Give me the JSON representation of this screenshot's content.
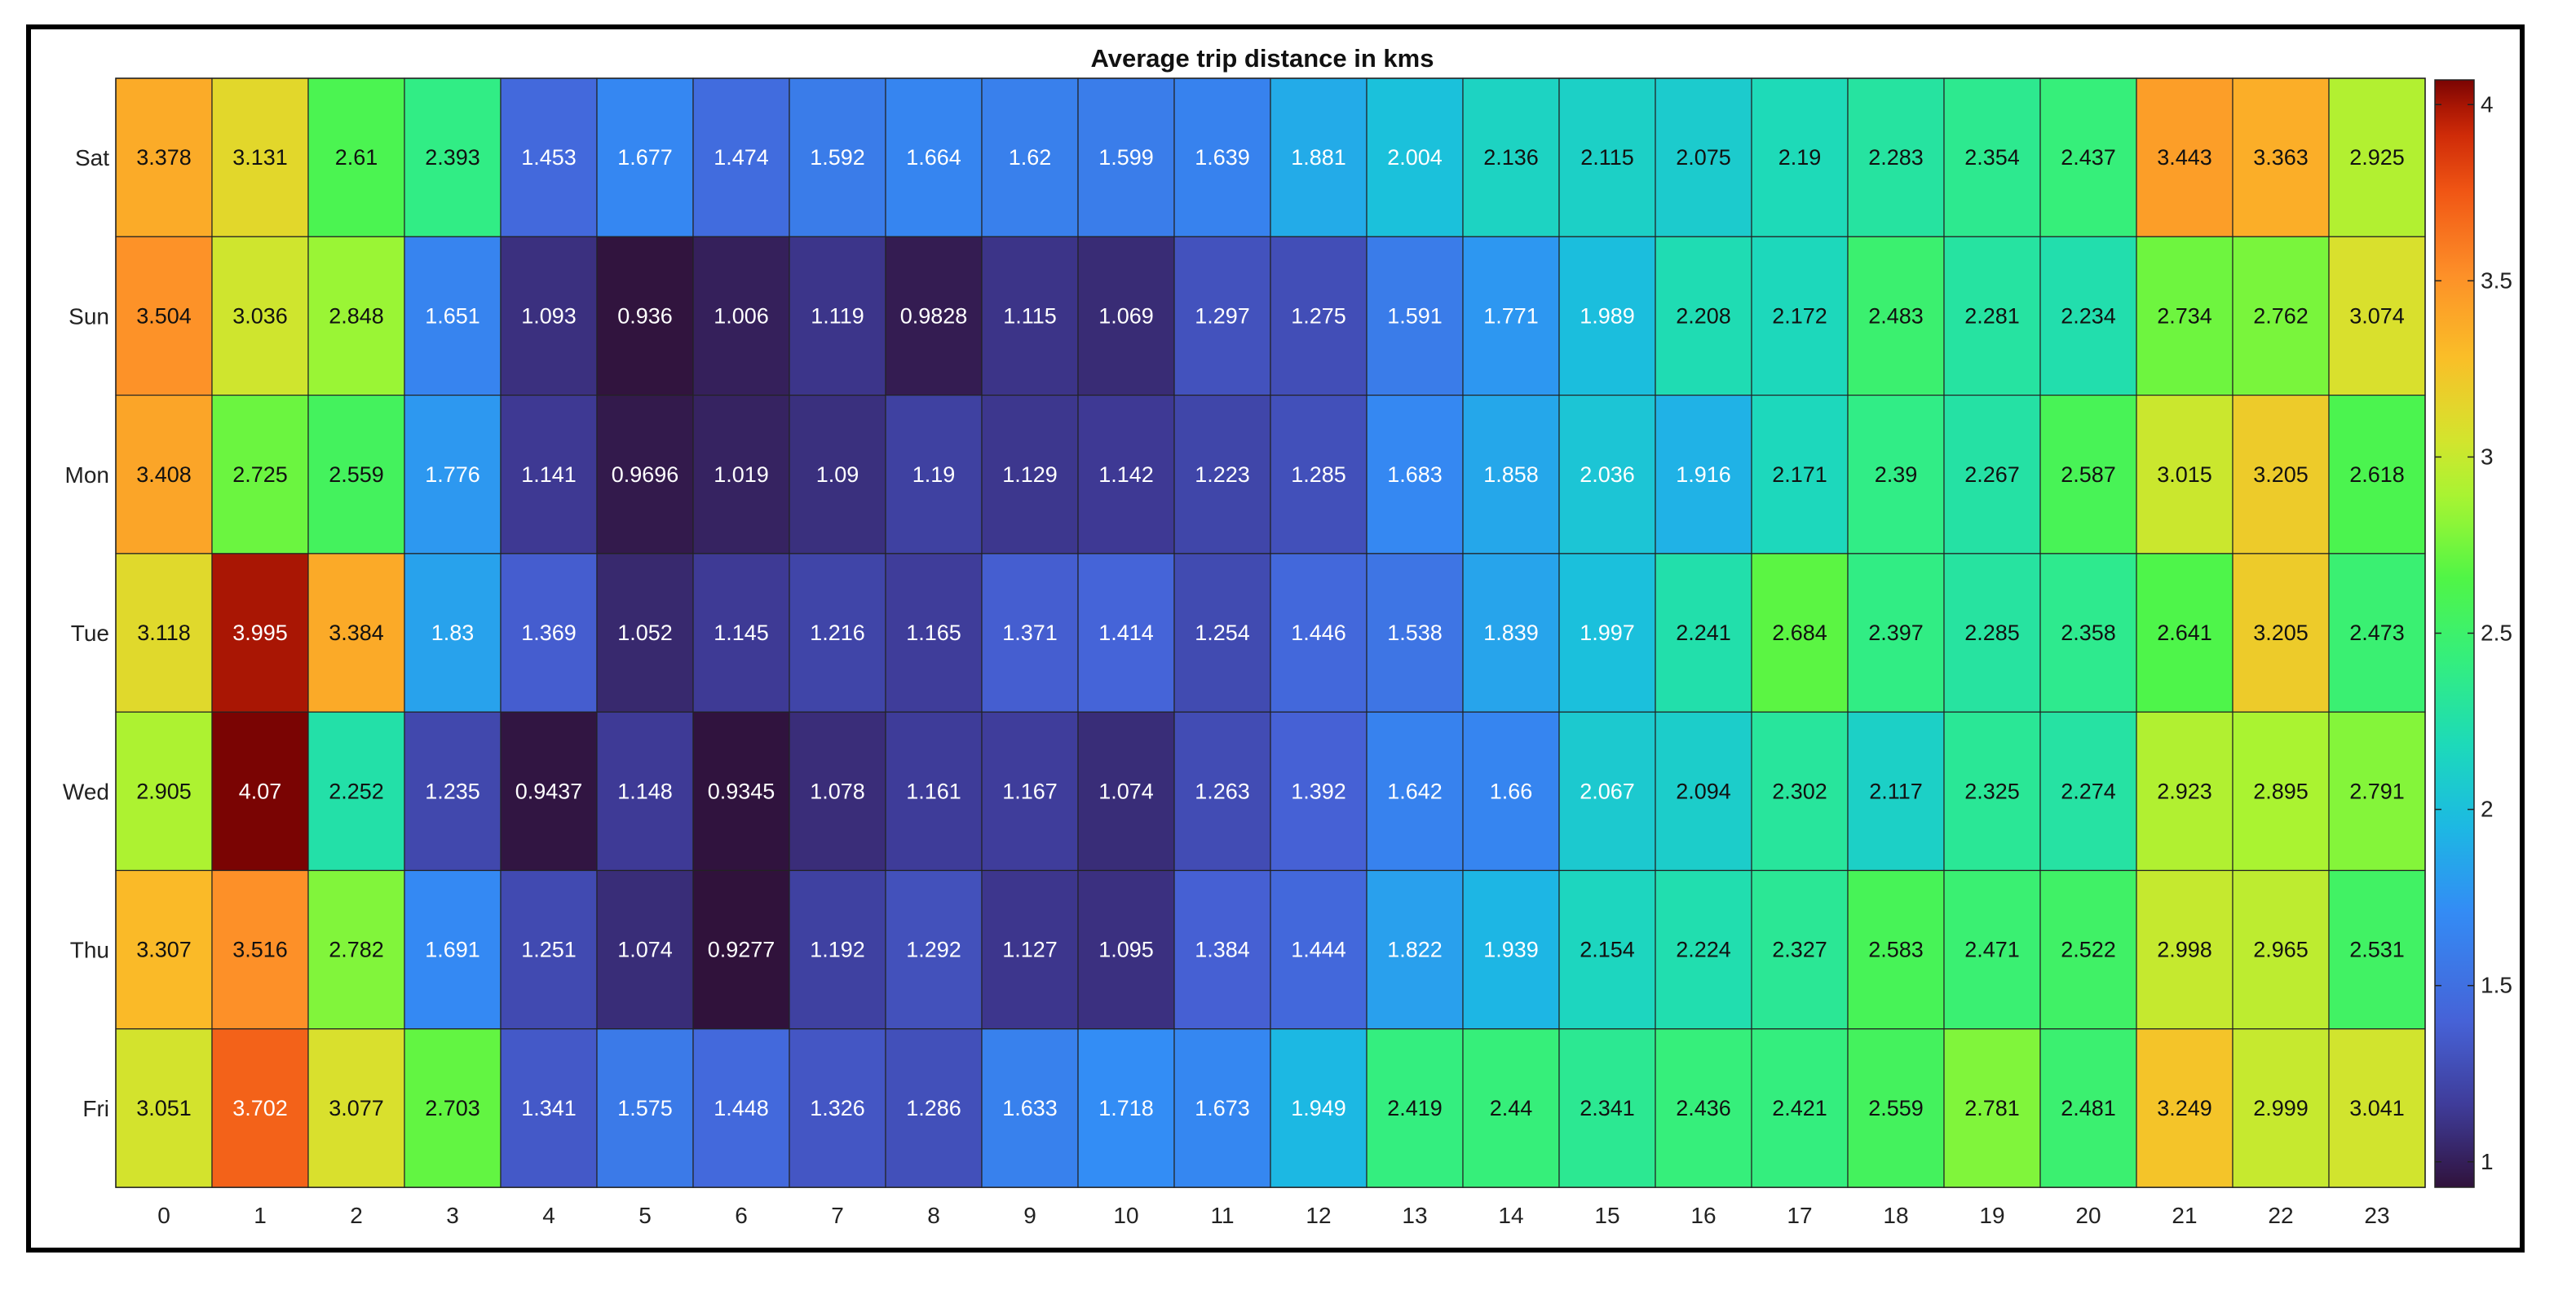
{
  "chart_data": {
    "type": "heatmap",
    "title": "Average trip distance in kms",
    "xlabel": "",
    "ylabel": "",
    "x_categories": [
      "0",
      "1",
      "2",
      "3",
      "4",
      "5",
      "6",
      "7",
      "8",
      "9",
      "10",
      "11",
      "12",
      "13",
      "14",
      "15",
      "16",
      "17",
      "18",
      "19",
      "20",
      "21",
      "22",
      "23"
    ],
    "y_categories": [
      "Sat",
      "Sun",
      "Mon",
      "Tue",
      "Wed",
      "Thu",
      "Fri"
    ],
    "values": [
      [
        "3.378",
        "3.131",
        "2.61",
        "2.393",
        "1.453",
        "1.677",
        "1.474",
        "1.592",
        "1.664",
        "1.62",
        "1.599",
        "1.639",
        "1.881",
        "2.004",
        "2.136",
        "2.115",
        "2.075",
        "2.19",
        "2.283",
        "2.354",
        "2.437",
        "3.443",
        "3.363",
        "2.925"
      ],
      [
        "3.504",
        "3.036",
        "2.848",
        "1.651",
        "1.093",
        "0.936",
        "1.006",
        "1.119",
        "0.9828",
        "1.115",
        "1.069",
        "1.297",
        "1.275",
        "1.591",
        "1.771",
        "1.989",
        "2.208",
        "2.172",
        "2.483",
        "2.281",
        "2.234",
        "2.734",
        "2.762",
        "3.074"
      ],
      [
        "3.408",
        "2.725",
        "2.559",
        "1.776",
        "1.141",
        "0.9696",
        "1.019",
        "1.09",
        "1.19",
        "1.129",
        "1.142",
        "1.223",
        "1.285",
        "1.683",
        "1.858",
        "2.036",
        "1.916",
        "2.171",
        "2.39",
        "2.267",
        "2.587",
        "3.015",
        "3.205",
        "2.618"
      ],
      [
        "3.118",
        "3.995",
        "3.384",
        "1.83",
        "1.369",
        "1.052",
        "1.145",
        "1.216",
        "1.165",
        "1.371",
        "1.414",
        "1.254",
        "1.446",
        "1.538",
        "1.839",
        "1.997",
        "2.241",
        "2.684",
        "2.397",
        "2.285",
        "2.358",
        "2.641",
        "3.205",
        "2.473"
      ],
      [
        "2.905",
        "4.07",
        "2.252",
        "1.235",
        "0.9437",
        "1.148",
        "0.9345",
        "1.078",
        "1.161",
        "1.167",
        "1.074",
        "1.263",
        "1.392",
        "1.642",
        "1.66",
        "2.067",
        "2.094",
        "2.302",
        "2.117",
        "2.325",
        "2.274",
        "2.923",
        "2.895",
        "2.791"
      ],
      [
        "3.307",
        "3.516",
        "2.782",
        "1.691",
        "1.251",
        "1.074",
        "0.9277",
        "1.192",
        "1.292",
        "1.127",
        "1.095",
        "1.384",
        "1.444",
        "1.822",
        "1.939",
        "2.154",
        "2.224",
        "2.327",
        "2.583",
        "2.471",
        "2.522",
        "2.998",
        "2.965",
        "2.531"
      ],
      [
        "3.051",
        "3.702",
        "3.077",
        "2.703",
        "1.341",
        "1.575",
        "1.448",
        "1.326",
        "1.286",
        "1.633",
        "1.718",
        "1.673",
        "1.949",
        "2.419",
        "2.44",
        "2.341",
        "2.436",
        "2.421",
        "2.559",
        "2.781",
        "2.481",
        "3.249",
        "2.999",
        "3.041"
      ]
    ],
    "colorbar": {
      "colormap": "turbo",
      "range": [
        0.9277,
        4.07
      ],
      "ticks": [
        1,
        1.5,
        2,
        2.5,
        3,
        3.5,
        4
      ],
      "tick_labels": [
        "1",
        "1.5",
        "2",
        "2.5",
        "3",
        "3.5",
        "4"
      ],
      "placement": "right"
    },
    "grid": false,
    "legend": "none"
  }
}
